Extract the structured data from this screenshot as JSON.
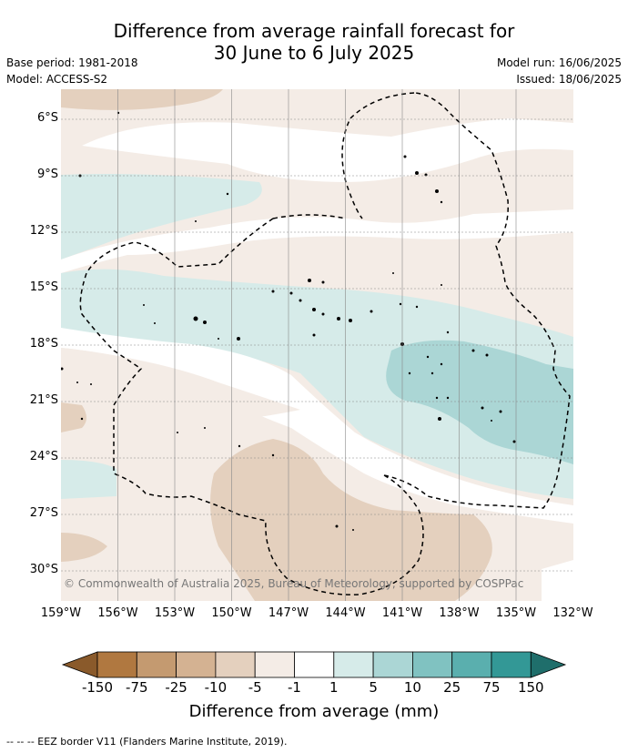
{
  "title_line1": "Difference from average rainfall forecast for",
  "title_line2": "30 June to 6 July 2025",
  "base_period": "Base period: 1981-2018",
  "model": "Model: ACCESS-S2",
  "model_run": "Model run: 16/06/2025",
  "issued": "Issued: 18/06/2025",
  "copyright": "© Commonwealth of Australia 2025, Bureau of Meteorology, supported by COSPPac",
  "x_ticks": [
    "159°W",
    "156°W",
    "153°W",
    "150°W",
    "147°W",
    "144°W",
    "141°W",
    "138°W",
    "135°W",
    "132°W"
  ],
  "y_ticks": [
    "6°S",
    "9°S",
    "12°S",
    "15°S",
    "18°S",
    "21°S",
    "24°S",
    "27°S",
    "30°S"
  ],
  "colorbar": {
    "labels": [
      "-150",
      "-75",
      "-25",
      "-10",
      "-5",
      "-1",
      "1",
      "5",
      "10",
      "25",
      "75",
      "150"
    ],
    "colors": [
      "#8a5a2b",
      "#b07840",
      "#c49a70",
      "#d4b292",
      "#e4d0be",
      "#f4ece6",
      "#ffffff",
      "#d6ebe9",
      "#abd6d5",
      "#80c2c1",
      "#5aafae",
      "#339896",
      "#1f6e6b"
    ],
    "title": "Difference from average (mm)"
  },
  "footnote": "--  --  -- EEZ border V11 (Flanders Marine Institute, 2019)."
}
